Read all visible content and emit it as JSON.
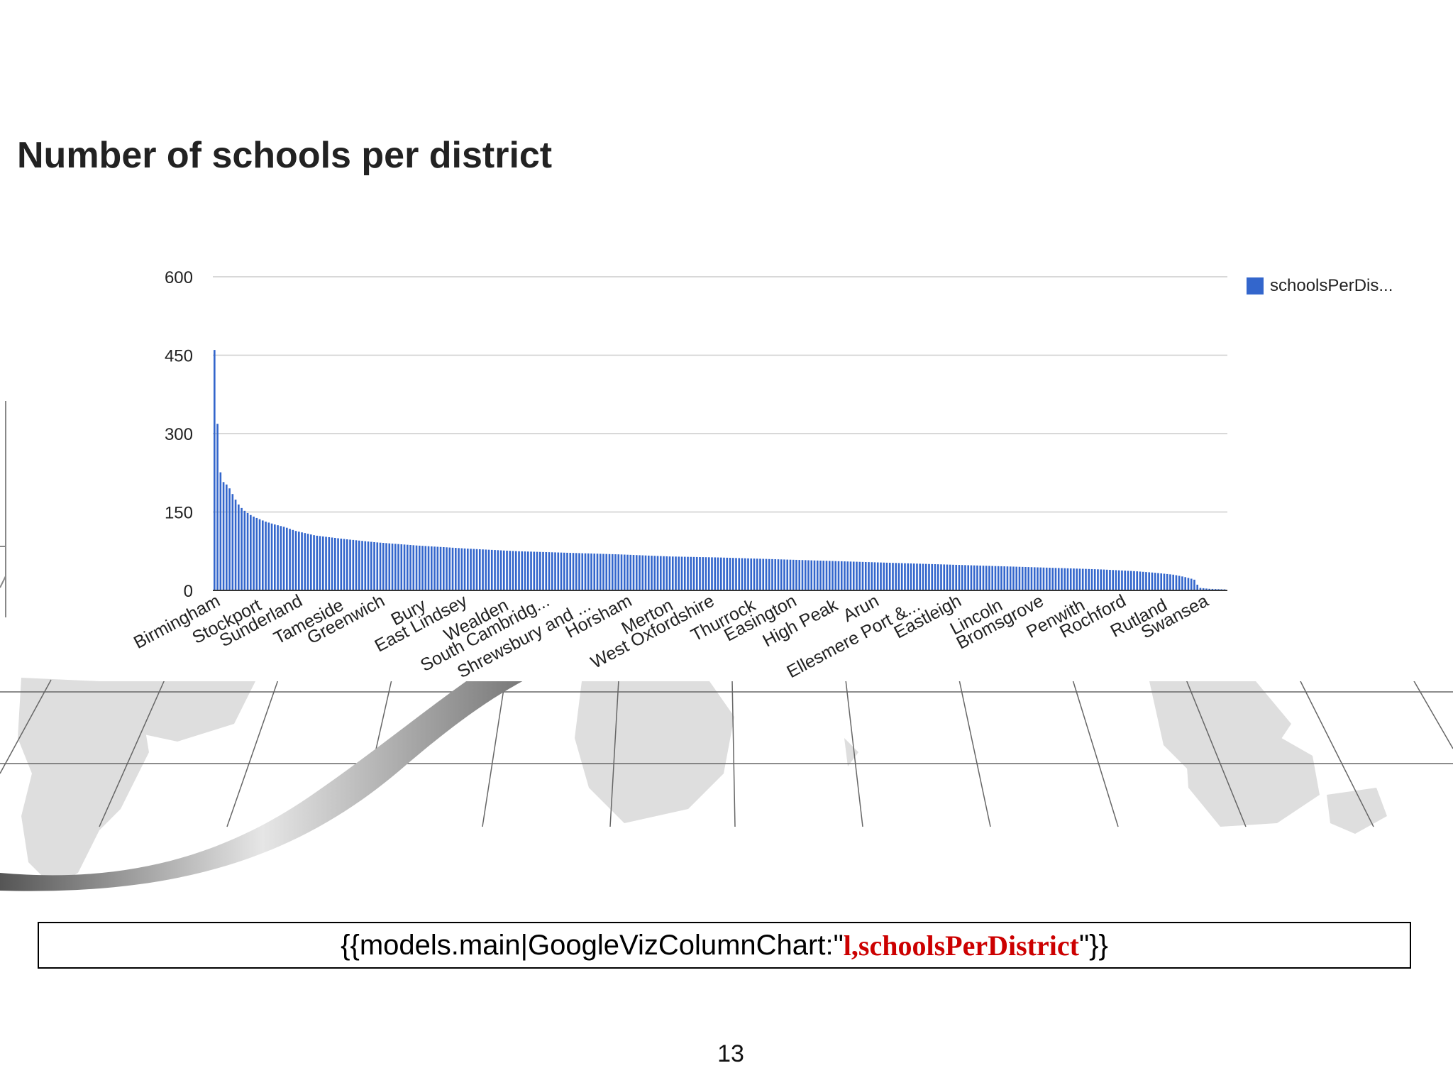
{
  "chart_data": {
    "type": "bar",
    "title": "Number of schools per district",
    "xlabel": "",
    "ylabel": "",
    "ylim": [
      0,
      600
    ],
    "yticks": [
      0,
      150,
      300,
      450,
      600
    ],
    "grid": true,
    "legend": {
      "position": "right",
      "entries": [
        "schoolsPerDis..."
      ]
    },
    "categories": [
      "Birmingham",
      "Stockport",
      "Sunderland",
      "Tameside",
      "Greenwich",
      "Bury",
      "East Lindsey",
      "Wealden",
      "South Cambridg...",
      "Shrewsbury and ...",
      "Horsham",
      "Merton",
      "West Oxfordshire",
      "Thurrock",
      "Easington",
      "High Peak",
      "Arun",
      "Ellesmere Port &...",
      "Eastleigh",
      "Lincoln",
      "Bromsgrove",
      "Penwith",
      "Rochford",
      "Rutland",
      "Swansea"
    ],
    "series": [
      {
        "name": "schoolsPerDis...",
        "values": [
          460,
          125,
          106,
          96,
          89,
          84,
          78,
          74,
          71,
          69,
          66,
          63,
          61,
          58,
          55,
          52,
          49,
          47,
          44,
          42,
          39,
          37,
          34,
          30,
          3
        ]
      }
    ],
    "distribution_profile": [
      [
        0.0,
        460
      ],
      [
        0.003,
        318
      ],
      [
        0.006,
        225
      ],
      [
        0.009,
        207
      ],
      [
        0.013,
        201
      ],
      [
        0.016,
        192
      ],
      [
        0.019,
        180
      ],
      [
        0.022,
        170
      ],
      [
        0.025,
        161
      ],
      [
        0.03,
        152
      ],
      [
        0.035,
        145
      ],
      [
        0.04,
        140
      ],
      [
        0.05,
        132
      ],
      [
        0.06,
        126
      ],
      [
        0.07,
        121
      ],
      [
        0.08,
        114
      ],
      [
        0.1,
        105
      ],
      [
        0.13,
        98
      ],
      [
        0.16,
        92
      ],
      [
        0.2,
        86
      ],
      [
        0.25,
        80
      ],
      [
        0.3,
        75
      ],
      [
        0.35,
        72
      ],
      [
        0.4,
        69
      ],
      [
        0.45,
        65
      ],
      [
        0.5,
        63
      ],
      [
        0.55,
        60
      ],
      [
        0.6,
        57
      ],
      [
        0.65,
        54
      ],
      [
        0.7,
        51
      ],
      [
        0.75,
        48
      ],
      [
        0.8,
        45
      ],
      [
        0.85,
        42
      ],
      [
        0.88,
        40
      ],
      [
        0.91,
        37
      ],
      [
        0.93,
        34
      ],
      [
        0.95,
        30
      ],
      [
        0.96,
        26
      ],
      [
        0.97,
        21
      ],
      [
        0.975,
        5
      ],
      [
        0.985,
        3
      ],
      [
        1.0,
        2
      ]
    ],
    "total_bars": 336,
    "colors": {
      "bar": "#3366cc",
      "grid": "#cccccc",
      "axis": "#333333"
    }
  },
  "footer": {
    "code_prefix": "{{models.main|GoogleVizColumnChart:\"",
    "code_highlight": "l,schoolsPerDistrict",
    "code_suffix": "\"}}",
    "page_number": "13"
  }
}
